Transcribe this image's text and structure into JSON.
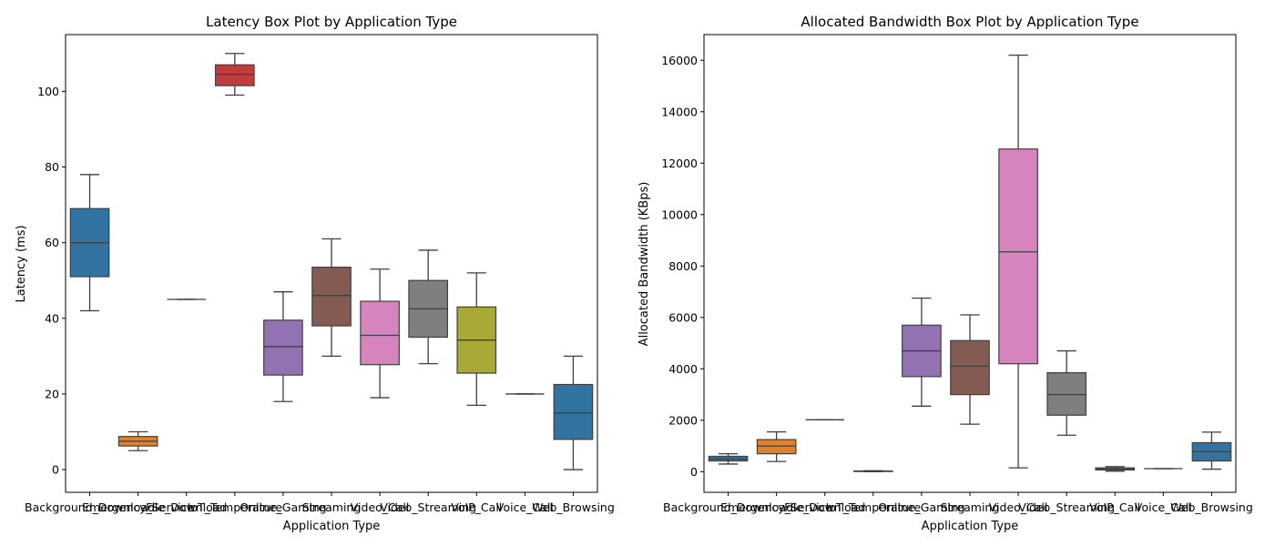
{
  "chart_data": [
    {
      "type": "box",
      "title": "Latency Box Plot by Application Type",
      "xlabel": "Application Type",
      "ylabel": "Latency (ms)",
      "ylim": [
        -6,
        115
      ],
      "yticks": [
        0,
        20,
        40,
        60,
        80,
        100
      ],
      "ytick_labels": [
        "0",
        "20",
        "40",
        "60",
        "80",
        "100"
      ],
      "grid": false,
      "categories": [
        "Background_Download",
        "Emergency_Service",
        "File_Download",
        "IoT_Temperature",
        "Online_Gaming",
        "Streaming",
        "Video_Call",
        "Video_Streaming",
        "VoIP_Call",
        "Voice_Call",
        "Web_Browsing"
      ],
      "boxes": [
        {
          "min": 42,
          "q1": 51,
          "median": 60,
          "q3": 69,
          "max": 78,
          "color": "#3274a1"
        },
        {
          "min": 5,
          "q1": 6.25,
          "median": 7.5,
          "q3": 8.75,
          "max": 10,
          "color": "#e1812c"
        },
        {
          "min": 45,
          "q1": 45,
          "median": 45,
          "q3": 45,
          "max": 45,
          "color": "#3a923a"
        },
        {
          "min": 99,
          "q1": 101.5,
          "median": 104.5,
          "q3": 107,
          "max": 110,
          "color": "#c03d3e"
        },
        {
          "min": 18,
          "q1": 25,
          "median": 32.5,
          "q3": 39.5,
          "max": 47,
          "color": "#9372b2"
        },
        {
          "min": 30,
          "q1": 38,
          "median": 46,
          "q3": 53.5,
          "max": 61,
          "color": "#845b53"
        },
        {
          "min": 19,
          "q1": 27.75,
          "median": 35.5,
          "q3": 44.5,
          "max": 53,
          "color": "#d684bd"
        },
        {
          "min": 28,
          "q1": 35,
          "median": 42.5,
          "q3": 50,
          "max": 58,
          "color": "#7f7f7f"
        },
        {
          "min": 17,
          "q1": 25.5,
          "median": 34.25,
          "q3": 43,
          "max": 52,
          "color": "#a9aa35"
        },
        {
          "min": 20,
          "q1": 20,
          "median": 20,
          "q3": 20,
          "max": 20,
          "color": "#2ed0de"
        },
        {
          "min": 0,
          "q1": 8,
          "median": 15,
          "q3": 22.5,
          "max": 30,
          "color": "#3274a1"
        }
      ]
    },
    {
      "type": "box",
      "title": "Allocated Bandwidth Box Plot by Application Type",
      "xlabel": "Application Type",
      "ylabel": "Allocated Bandwidth (KBps)",
      "ylim": [
        -800,
        17000
      ],
      "yticks": [
        0,
        2000,
        4000,
        6000,
        8000,
        10000,
        12000,
        14000,
        16000
      ],
      "ytick_labels": [
        "0",
        "2000",
        "4000",
        "6000",
        "8000",
        "10000",
        "12000",
        "14000",
        "16000"
      ],
      "grid": false,
      "categories": [
        "Background_Download",
        "Emergency_Service",
        "File_Download",
        "IoT_Temperature",
        "Online_Gaming",
        "Streaming",
        "Video_Call",
        "Video_Streaming",
        "VoIP_Call",
        "Voice_Call",
        "Web_Browsing"
      ],
      "boxes": [
        {
          "min": 300,
          "q1": 420,
          "median": 500,
          "q3": 600,
          "max": 700,
          "color": "#3274a1"
        },
        {
          "min": 400,
          "q1": 700,
          "median": 1000,
          "q3": 1250,
          "max": 1550,
          "color": "#e1812c"
        },
        {
          "min": 2020,
          "q1": 2020,
          "median": 2020,
          "q3": 2020,
          "max": 2020,
          "color": "#3a923a"
        },
        {
          "min": 0,
          "q1": 10,
          "median": 20,
          "q3": 30,
          "max": 40,
          "color": "#c03d3e"
        },
        {
          "min": 2550,
          "q1": 3700,
          "median": 4700,
          "q3": 5700,
          "max": 6750,
          "color": "#9372b2"
        },
        {
          "min": 1850,
          "q1": 3000,
          "median": 4100,
          "q3": 5100,
          "max": 6100,
          "color": "#845b53"
        },
        {
          "min": 150,
          "q1": 4200,
          "median": 8550,
          "q3": 12550,
          "max": 16200,
          "color": "#d684bd"
        },
        {
          "min": 1420,
          "q1": 2200,
          "median": 3000,
          "q3": 3850,
          "max": 4700,
          "color": "#7f7f7f"
        },
        {
          "min": 20,
          "q1": 70,
          "median": 110,
          "q3": 150,
          "max": 200,
          "color": "#a9aa35"
        },
        {
          "min": 120,
          "q1": 120,
          "median": 120,
          "q3": 120,
          "max": 120,
          "color": "#2ed0de"
        },
        {
          "min": 100,
          "q1": 420,
          "median": 780,
          "q3": 1130,
          "max": 1540,
          "color": "#3274a1"
        }
      ]
    }
  ]
}
